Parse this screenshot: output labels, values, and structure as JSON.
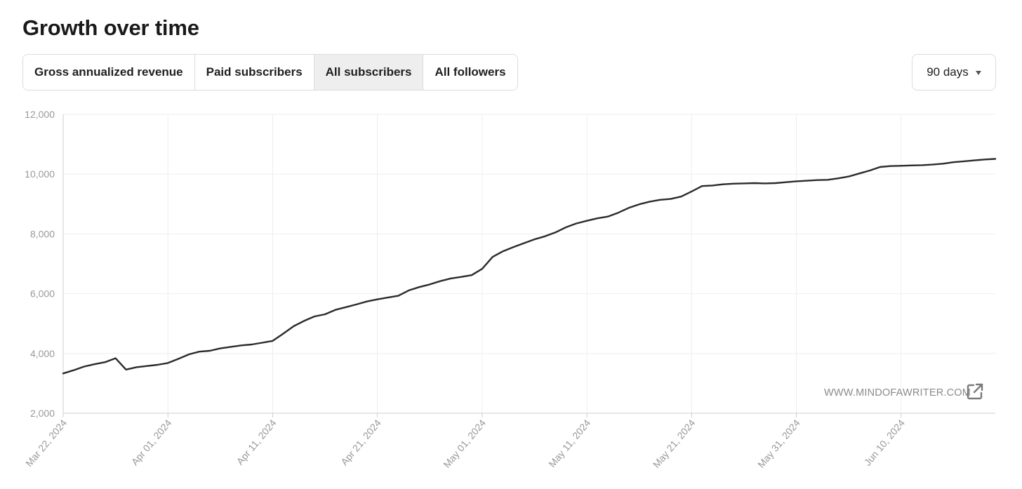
{
  "page": {
    "title": "Growth over time"
  },
  "tabs": [
    {
      "label": "Gross annualized revenue",
      "active": false
    },
    {
      "label": "Paid subscribers",
      "active": false
    },
    {
      "label": "All subscribers",
      "active": true
    },
    {
      "label": "All followers",
      "active": false
    }
  ],
  "range_select": {
    "value": "90 days"
  },
  "watermark": {
    "text": "WWW.MINDOFAWRITER.COM",
    "icon": "external-link-icon"
  },
  "colors": {
    "line": "#2b2b2b",
    "grid": "#eeeeee",
    "axis": "#cfcfcf",
    "tick_text": "#999999",
    "active_tab": "#eeeeee"
  },
  "chart_data": {
    "type": "line",
    "title": "",
    "xlabel": "",
    "ylabel": "",
    "ylim": [
      2000,
      12000
    ],
    "yticks": [
      2000,
      4000,
      6000,
      8000,
      10000,
      12000
    ],
    "ytick_labels": [
      "2,000",
      "4,000",
      "6,000",
      "8,000",
      "10,000",
      "12,000"
    ],
    "xlim": [
      "2024-03-22",
      "2024-06-19"
    ],
    "xticks": [
      "2024-03-22",
      "2024-04-01",
      "2024-04-11",
      "2024-04-21",
      "2024-05-01",
      "2024-05-11",
      "2024-05-21",
      "2024-05-31",
      "2024-06-10"
    ],
    "xtick_labels": [
      "Mar 22, 2024",
      "Apr 01, 2024",
      "Apr 11, 2024",
      "Apr 21, 2024",
      "May 01, 2024",
      "May 11, 2024",
      "May 21, 2024",
      "May 31, 2024",
      "Jun 10, 2024"
    ],
    "grid": true,
    "legend": "none",
    "series": [
      {
        "x": [
          "2024-03-22",
          "2024-03-23",
          "2024-03-24",
          "2024-03-25",
          "2024-03-26",
          "2024-03-27",
          "2024-03-28",
          "2024-03-29",
          "2024-03-30",
          "2024-03-31",
          "2024-04-01",
          "2024-04-02",
          "2024-04-03",
          "2024-04-04",
          "2024-04-05",
          "2024-04-06",
          "2024-04-07",
          "2024-04-08",
          "2024-04-09",
          "2024-04-10",
          "2024-04-11",
          "2024-04-12",
          "2024-04-13",
          "2024-04-14",
          "2024-04-15",
          "2024-04-16",
          "2024-04-17",
          "2024-04-18",
          "2024-04-19",
          "2024-04-20",
          "2024-04-21",
          "2024-04-22",
          "2024-04-23",
          "2024-04-24",
          "2024-04-25",
          "2024-04-26",
          "2024-04-27",
          "2024-04-28",
          "2024-04-29",
          "2024-04-30",
          "2024-05-01",
          "2024-05-02",
          "2024-05-03",
          "2024-05-04",
          "2024-05-05",
          "2024-05-06",
          "2024-05-07",
          "2024-05-08",
          "2024-05-09",
          "2024-05-10",
          "2024-05-11",
          "2024-05-12",
          "2024-05-13",
          "2024-05-14",
          "2024-05-15",
          "2024-05-16",
          "2024-05-17",
          "2024-05-18",
          "2024-05-19",
          "2024-05-20",
          "2024-05-21",
          "2024-05-22",
          "2024-05-23",
          "2024-05-24",
          "2024-05-25",
          "2024-05-26",
          "2024-05-27",
          "2024-05-28",
          "2024-05-29",
          "2024-05-30",
          "2024-05-31",
          "2024-06-01",
          "2024-06-02",
          "2024-06-03",
          "2024-06-04",
          "2024-06-05",
          "2024-06-06",
          "2024-06-07",
          "2024-06-08",
          "2024-06-09",
          "2024-06-10",
          "2024-06-11",
          "2024-06-12",
          "2024-06-13",
          "2024-06-14",
          "2024-06-15",
          "2024-06-16",
          "2024-06-17",
          "2024-06-18",
          "2024-06-19"
        ],
        "values": [
          3330,
          3440,
          3560,
          3640,
          3710,
          3840,
          3460,
          3540,
          3580,
          3620,
          3680,
          3820,
          3970,
          4060,
          4090,
          4170,
          4220,
          4270,
          4300,
          4360,
          4420,
          4660,
          4910,
          5090,
          5240,
          5310,
          5460,
          5550,
          5640,
          5740,
          5810,
          5870,
          5930,
          6110,
          6220,
          6310,
          6420,
          6510,
          6560,
          6620,
          6830,
          7230,
          7420,
          7560,
          7690,
          7820,
          7920,
          8050,
          8220,
          8350,
          8440,
          8520,
          8580,
          8710,
          8870,
          8990,
          9080,
          9140,
          9170,
          9250,
          9420,
          9600,
          9620,
          9660,
          9680,
          9690,
          9700,
          9690,
          9700,
          9730,
          9760,
          9780,
          9800,
          9810,
          9860,
          9920,
          10020,
          10120,
          10240,
          10270,
          10280,
          10290,
          10300,
          10320,
          10350,
          10400,
          10430,
          10460,
          10490,
          10510
        ]
      }
    ]
  }
}
